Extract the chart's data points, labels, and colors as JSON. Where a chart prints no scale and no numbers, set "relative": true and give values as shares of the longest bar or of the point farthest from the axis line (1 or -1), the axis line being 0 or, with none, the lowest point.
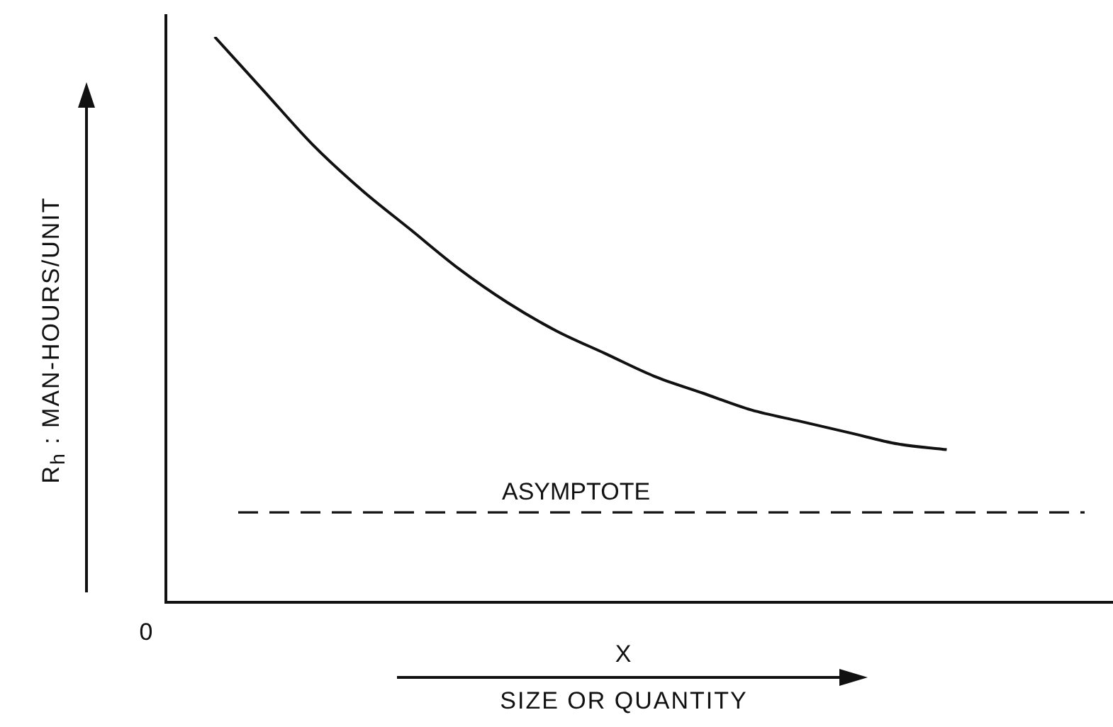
{
  "chart_data": {
    "type": "line",
    "relative": true,
    "xlabel": "X\nSIZE OR QUANTITY",
    "ylabel": "R$_{h}$ : MAN-HOURS/UNIT",
    "categories": [
      null,
      null,
      null,
      null,
      null,
      null,
      null,
      null,
      null,
      null,
      null,
      null,
      null,
      null,
      null,
      null,
      null,
      null,
      null,
      null
    ],
    "series": [
      {
        "color": "#111111",
        "values": [
          null,
          1.0,
          0.905,
          0.81,
          0.73,
          0.66,
          0.59,
          0.53,
          0.48,
          0.44,
          0.4,
          0.37,
          0.34,
          0.32,
          0.3,
          0.28,
          0.27,
          null,
          null,
          null
        ]
      }
    ],
    "ref_lines": [
      {
        "axis": "y",
        "value": 0.159,
        "label": "ASYMPTOTE",
        "color": "#111111",
        "line_style": "dashed"
      }
    ],
    "annotations": [
      "0"
    ],
    "marker": "none",
    "line_style": "solid",
    "legend": false
  }
}
